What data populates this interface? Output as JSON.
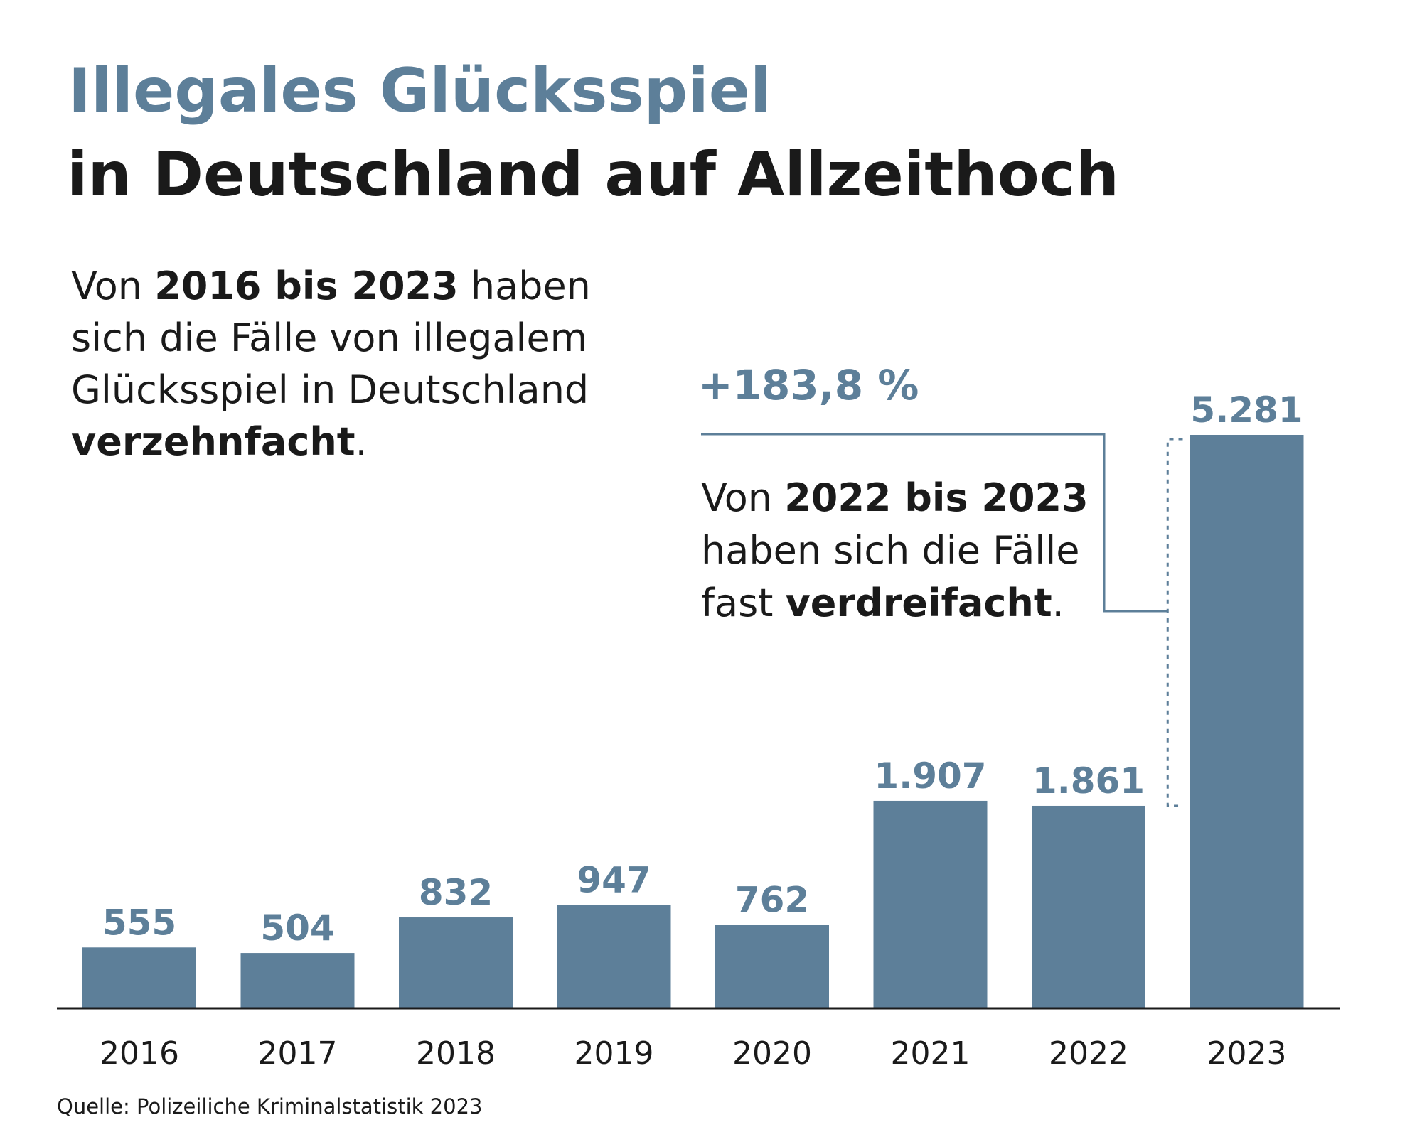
{
  "header": {
    "title_line1": "Illegales Glücksspiel",
    "title_line2": "in Deutschland auf Allzeithoch"
  },
  "intro": {
    "t1": "Von ",
    "b1": "2016 bis 2023",
    "t2": " haben sich die Fälle von illegalem Glücksspiel in Deutschland ",
    "b2": "verzehnfacht",
    "t3": "."
  },
  "annotation": {
    "percent": "+183,8 %",
    "t1": "Von ",
    "b1": "2022 bis 2023",
    "t2": " haben sich die Fälle fast ",
    "b2": "verdreifacht",
    "t3": "."
  },
  "source": "Quelle: Polizeiliche Kriminalstatistik 2023",
  "colors": {
    "bar": "#5d7f99",
    "axis": "#1a1a1a",
    "text": "#1a1a1a"
  },
  "chart_data": {
    "type": "bar",
    "categories": [
      "2016",
      "2017",
      "2018",
      "2019",
      "2020",
      "2021",
      "2022",
      "2023"
    ],
    "values": [
      555,
      504,
      832,
      947,
      762,
      1907,
      1861,
      5281
    ],
    "value_labels": [
      "555",
      "504",
      "832",
      "947",
      "762",
      "1.907",
      "1.861",
      "5.281"
    ],
    "title": "Illegales Glücksspiel in Deutschland auf Allzeithoch",
    "xlabel": "",
    "ylabel": "",
    "ylim": [
      0,
      5281
    ],
    "grid": false
  }
}
